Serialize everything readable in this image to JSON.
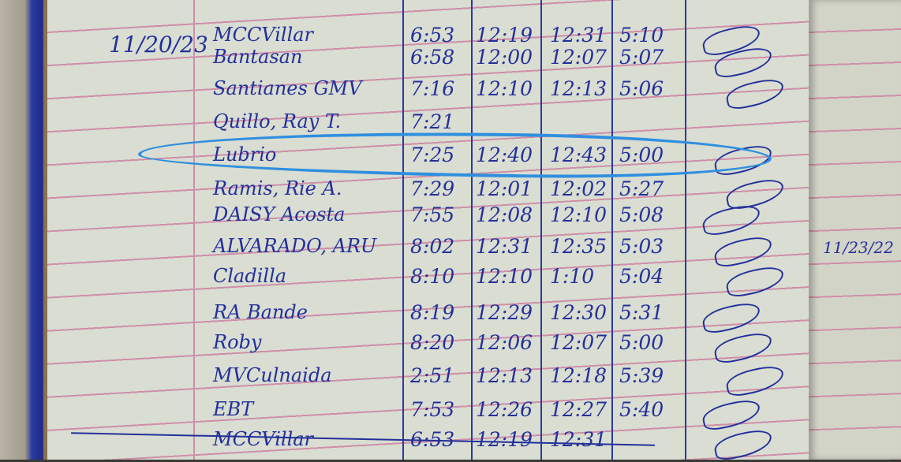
{
  "date": "11/20/23",
  "right_page_date": "11/23/22",
  "rows": [
    {
      "name": "MCCVillar",
      "in": "6:53",
      "lunch_out": "12:19",
      "lunch_in": "12:31",
      "out": "5:10"
    },
    {
      "name": "Bantasan",
      "in": "6:58",
      "lunch_out": "12:00",
      "lunch_in": "12:07",
      "out": "5:07"
    },
    {
      "name": "Santianes GMV",
      "in": "7:16",
      "lunch_out": "12:10",
      "lunch_in": "12:13",
      "out": "5:06"
    },
    {
      "name": "Quillo, Ray T.",
      "in": "7:21",
      "lunch_out": "",
      "lunch_in": "",
      "out": ""
    },
    {
      "name": "Lubrio",
      "in": "7:25",
      "lunch_out": "12:40",
      "lunch_in": "12:43",
      "out": "5:00"
    },
    {
      "name": "Ramis, Rie A.",
      "in": "7:29",
      "lunch_out": "12:01",
      "lunch_in": "12:02",
      "out": "5:27"
    },
    {
      "name": "DAISY Acosta",
      "in": "7:55",
      "lunch_out": "12:08",
      "lunch_in": "12:10",
      "out": "5:08"
    },
    {
      "name": "ALVARADO, ARU",
      "in": "8:02",
      "lunch_out": "12:31",
      "lunch_in": "12:35",
      "out": "5:03"
    },
    {
      "name": "Cladilla",
      "in": "8:10",
      "lunch_out": "12:10",
      "lunch_in": "1:10",
      "out": "5:04"
    },
    {
      "name": "RA Bande",
      "in": "8:19",
      "lunch_out": "12:29",
      "lunch_in": "12:30",
      "out": "5:31"
    },
    {
      "name": "Roby",
      "in": "8:20",
      "lunch_out": "12:06",
      "lunch_in": "12:07",
      "out": "5:00"
    },
    {
      "name": "MVCulnaida",
      "in": "2:51",
      "lunch_out": "12:13",
      "lunch_in": "12:18",
      "out": "5:39"
    },
    {
      "name": "EBT",
      "in": "7:53",
      "lunch_out": "12:26",
      "lunch_in": "12:27",
      "out": "5:40"
    },
    {
      "name": "MCCVillar",
      "in": "6:53",
      "lunch_out": "12:19",
      "lunch_in": "12:31",
      "out": ""
    }
  ],
  "highlight_color": "#2f8fdf",
  "ink_color": "#23309a"
}
